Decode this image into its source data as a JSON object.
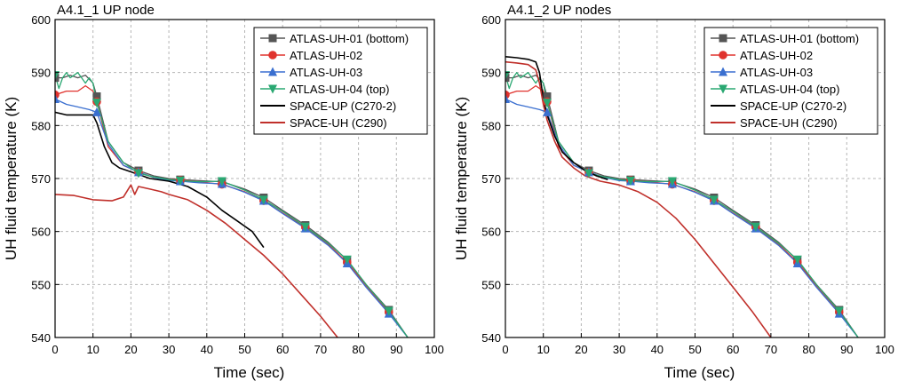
{
  "chart_data": [
    {
      "type": "line",
      "title": "A4.1_1 UP node",
      "xlabel": "Time (sec)",
      "ylabel": "UH fluid temperature (K)",
      "xlim": [
        0,
        100
      ],
      "ylim": [
        540,
        600
      ],
      "xticks": [
        0,
        10,
        20,
        30,
        40,
        50,
        60,
        70,
        80,
        90,
        100
      ],
      "yticks": [
        540,
        550,
        560,
        570,
        580,
        590,
        600
      ],
      "grid": true,
      "legend_position": "top-right",
      "series": [
        {
          "name": "ATLAS-UH-01 (bottom)",
          "color": "#555555",
          "marker": "square",
          "x": [
            0,
            2,
            4,
            6,
            8,
            10,
            11,
            14,
            18,
            22,
            26,
            30,
            33,
            38,
            44,
            50,
            55,
            60,
            66,
            72,
            77,
            82,
            88,
            93
          ],
          "y": [
            589,
            589,
            589.5,
            589,
            589.5,
            588,
            585.5,
            577,
            573,
            571.5,
            570.5,
            570,
            569.8,
            569.6,
            569.4,
            568,
            566.4,
            564,
            561.2,
            558,
            554.6,
            550,
            545.2,
            540
          ]
        },
        {
          "name": "ATLAS-UH-02",
          "color": "#e0332e",
          "marker": "circle",
          "x": [
            0,
            3,
            6,
            8,
            10,
            11,
            14,
            18,
            22,
            26,
            30,
            33,
            38,
            44,
            50,
            55,
            60,
            66,
            72,
            77,
            82,
            88,
            93
          ],
          "y": [
            585.8,
            586.5,
            586.5,
            587.5,
            586.5,
            584.5,
            576,
            572.5,
            571.2,
            570.2,
            569.8,
            569.7,
            569.4,
            568.9,
            567.5,
            565.8,
            563.5,
            560.8,
            557.6,
            554.2,
            549.8,
            544.8,
            540
          ]
        },
        {
          "name": "ATLAS-UH-03",
          "color": "#3a6fd0",
          "marker": "triangle-up",
          "x": [
            0,
            3,
            6,
            9,
            11,
            14,
            18,
            22,
            26,
            30,
            33,
            38,
            44,
            50,
            55,
            60,
            66,
            72,
            77,
            82,
            88,
            93
          ],
          "y": [
            585,
            584,
            583.5,
            583,
            582.5,
            576.5,
            572.5,
            571.2,
            570.2,
            569.6,
            569.5,
            569.2,
            569,
            567.4,
            565.8,
            563.4,
            560.6,
            557.4,
            554,
            549.5,
            544.5,
            540
          ]
        },
        {
          "name": "ATLAS-UH-04 (top)",
          "color": "#2aa872",
          "marker": "triangle-down",
          "x": [
            0,
            1,
            2,
            3,
            4,
            5,
            6,
            7,
            8,
            9,
            10,
            11,
            14,
            18,
            22,
            26,
            30,
            33,
            38,
            44,
            50,
            55,
            60,
            66,
            72,
            77,
            82,
            88,
            93
          ],
          "y": [
            589.5,
            587,
            589,
            590,
            589,
            589.5,
            590,
            589,
            588,
            589,
            588,
            584.3,
            577,
            573,
            571,
            570.3,
            569.8,
            569.6,
            569.4,
            569.5,
            567.8,
            566,
            563.8,
            560.9,
            557.8,
            554.7,
            550,
            545,
            540
          ]
        },
        {
          "name": "SPACE-UP (C270-2)",
          "color": "#000000",
          "marker": "none",
          "x": [
            0,
            3,
            6,
            9,
            10,
            11,
            13,
            15,
            17,
            19,
            21,
            25,
            30,
            35,
            40,
            44,
            48,
            52,
            55
          ],
          "y": [
            582.5,
            582,
            582,
            582,
            582,
            580.5,
            576,
            573,
            572,
            571.5,
            571,
            570,
            569.5,
            568.5,
            566.5,
            564,
            562,
            560,
            557
          ]
        },
        {
          "name": "SPACE-UH (C290)",
          "color": "#c0302b",
          "marker": "none",
          "x": [
            0,
            5,
            10,
            15,
            18,
            20,
            21,
            22,
            25,
            28,
            30,
            35,
            40,
            45,
            50,
            55,
            60,
            65,
            70,
            74.5
          ],
          "y": [
            567,
            566.8,
            566,
            565.8,
            566.5,
            568.8,
            567,
            568.5,
            568,
            567.5,
            567,
            566,
            564,
            561.5,
            558.5,
            555.5,
            552,
            548,
            544,
            540
          ]
        }
      ]
    },
    {
      "type": "line",
      "title": "A4.1_2 UP nodes",
      "xlabel": "Time (sec)",
      "ylabel": "UH fluid temperature (K)",
      "xlim": [
        0,
        100
      ],
      "ylim": [
        540,
        600
      ],
      "xticks": [
        0,
        10,
        20,
        30,
        40,
        50,
        60,
        70,
        80,
        90,
        100
      ],
      "yticks": [
        540,
        550,
        560,
        570,
        580,
        590,
        600
      ],
      "grid": true,
      "legend_position": "top-right",
      "series": [
        {
          "name": "ATLAS-UH-01 (bottom)",
          "color": "#555555",
          "marker": "square",
          "x": [
            0,
            2,
            4,
            6,
            8,
            10,
            11,
            14,
            18,
            22,
            26,
            30,
            33,
            38,
            44,
            50,
            55,
            60,
            66,
            72,
            77,
            82,
            88,
            93
          ],
          "y": [
            589,
            589,
            589.5,
            589,
            589.5,
            588,
            585.5,
            577,
            573,
            571.5,
            570.5,
            570,
            569.8,
            569.6,
            569.4,
            568,
            566.4,
            564,
            561.2,
            558,
            554.6,
            550,
            545.2,
            540
          ]
        },
        {
          "name": "ATLAS-UH-02",
          "color": "#e0332e",
          "marker": "circle",
          "x": [
            0,
            3,
            6,
            8,
            10,
            11,
            14,
            18,
            22,
            26,
            30,
            33,
            38,
            44,
            50,
            55,
            60,
            66,
            72,
            77,
            82,
            88,
            93
          ],
          "y": [
            585.8,
            586.5,
            586.5,
            587.5,
            586.5,
            584.5,
            576,
            572.5,
            571.2,
            570.2,
            569.8,
            569.7,
            569.4,
            568.9,
            567.5,
            565.8,
            563.5,
            560.8,
            557.6,
            554.2,
            549.8,
            544.8,
            540
          ]
        },
        {
          "name": "ATLAS-UH-03",
          "color": "#3a6fd0",
          "marker": "triangle-up",
          "x": [
            0,
            3,
            6,
            9,
            11,
            14,
            18,
            22,
            26,
            30,
            33,
            38,
            44,
            50,
            55,
            60,
            66,
            72,
            77,
            82,
            88,
            93
          ],
          "y": [
            585,
            584,
            583.5,
            583,
            582.5,
            576.5,
            572.5,
            571.2,
            570.2,
            569.6,
            569.5,
            569.2,
            569,
            567.4,
            565.8,
            563.4,
            560.6,
            557.4,
            554,
            549.5,
            544.5,
            540
          ]
        },
        {
          "name": "ATLAS-UH-04 (top)",
          "color": "#2aa872",
          "marker": "triangle-down",
          "x": [
            0,
            1,
            2,
            3,
            4,
            5,
            6,
            7,
            8,
            9,
            10,
            11,
            14,
            18,
            22,
            26,
            30,
            33,
            38,
            44,
            50,
            55,
            60,
            66,
            72,
            77,
            82,
            88,
            93
          ],
          "y": [
            589.5,
            587,
            589,
            590,
            589,
            589.5,
            590,
            589,
            588,
            589,
            588,
            584.3,
            577,
            573,
            571,
            570.3,
            569.8,
            569.6,
            569.4,
            569.5,
            567.8,
            566,
            563.8,
            560.9,
            557.8,
            554.7,
            550,
            545,
            540
          ]
        },
        {
          "name": "SPACE-UP (C270-2)",
          "color": "#000000",
          "marker": "none",
          "x": [
            0,
            3,
            6,
            8,
            9,
            10,
            11,
            13,
            15,
            18,
            21,
            24,
            27
          ],
          "y": [
            593,
            592.8,
            592.5,
            592,
            590,
            585,
            582,
            578,
            575,
            573,
            571.5,
            570.5,
            569.8
          ]
        },
        {
          "name": "SPACE-UH (C290)",
          "color": "#c0302b",
          "marker": "none",
          "x": [
            0,
            3,
            6,
            8,
            9,
            10,
            11,
            13,
            15,
            18,
            21,
            25,
            30,
            35,
            40,
            45,
            50,
            55,
            60,
            65,
            70
          ],
          "y": [
            592,
            591.8,
            591.5,
            590.5,
            588,
            584,
            581,
            577,
            574,
            572,
            570.5,
            569.5,
            568.8,
            567.5,
            565.5,
            562.5,
            558.5,
            554,
            549.5,
            545,
            540
          ]
        }
      ]
    }
  ]
}
